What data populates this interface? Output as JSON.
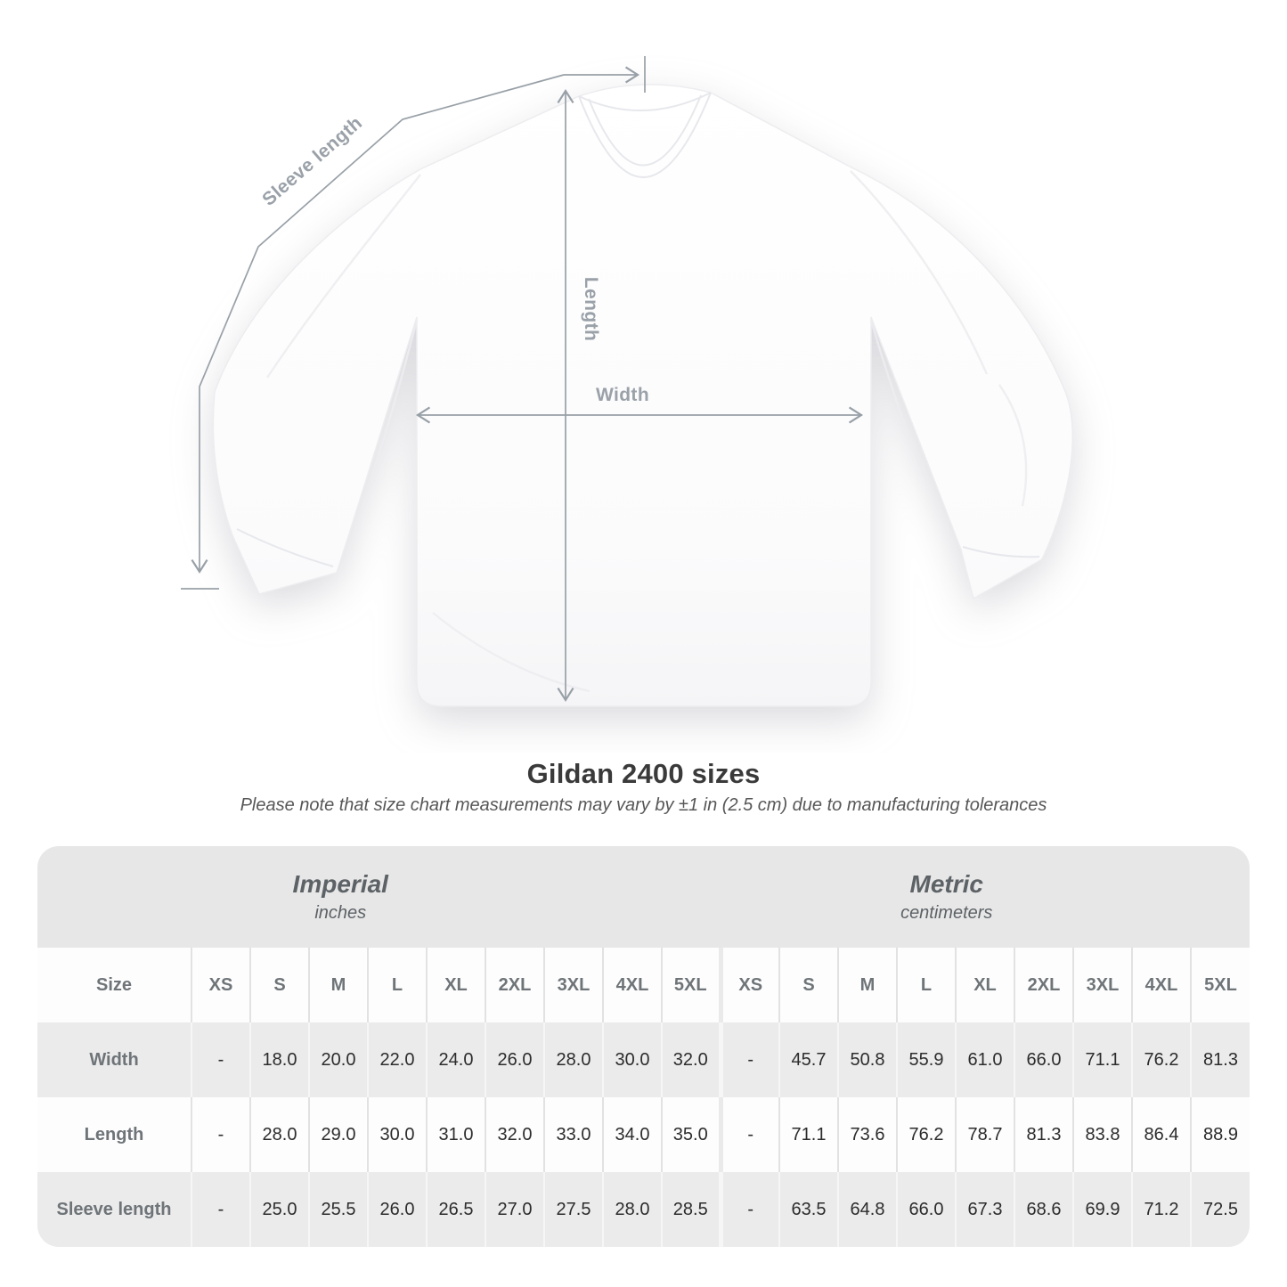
{
  "title": "Gildan 2400 sizes",
  "subtitle": "Please note that size chart measurements may vary by ±1 in (2.5 cm) due to manufacturing tolerances",
  "diagram": {
    "sleeve_length_label": "Sleeve length",
    "length_label": "Length",
    "width_label": "Width"
  },
  "chart_data": {
    "type": "table",
    "title": "Gildan 2400 sizes",
    "note": "Please note that size chart measurements may vary by ±1 in (2.5 cm) due to manufacturing tolerances",
    "unit_groups": [
      {
        "label": "Imperial",
        "unit": "inches"
      },
      {
        "label": "Metric",
        "unit": "centimeters"
      }
    ],
    "size_header_label": "Size",
    "sizes": [
      "XS",
      "S",
      "M",
      "L",
      "XL",
      "2XL",
      "3XL",
      "4XL",
      "5XL"
    ],
    "rows": [
      {
        "label": "Width",
        "imperial": [
          "-",
          "18.0",
          "20.0",
          "22.0",
          "24.0",
          "26.0",
          "28.0",
          "30.0",
          "32.0"
        ],
        "metric": [
          "-",
          "45.7",
          "50.8",
          "55.9",
          "61.0",
          "66.0",
          "71.1",
          "76.2",
          "81.3"
        ]
      },
      {
        "label": "Length",
        "imperial": [
          "-",
          "28.0",
          "29.0",
          "30.0",
          "31.0",
          "32.0",
          "33.0",
          "34.0",
          "35.0"
        ],
        "metric": [
          "-",
          "71.1",
          "73.6",
          "76.2",
          "78.7",
          "81.3",
          "83.8",
          "86.4",
          "88.9"
        ]
      },
      {
        "label": "Sleeve length",
        "imperial": [
          "-",
          "25.0",
          "25.5",
          "26.0",
          "26.5",
          "27.0",
          "27.5",
          "28.0",
          "28.5"
        ],
        "metric": [
          "-",
          "63.5",
          "64.8",
          "66.0",
          "67.3",
          "68.6",
          "69.9",
          "71.2",
          "72.5"
        ]
      }
    ]
  },
  "colors": {
    "annotation": "#98a0a7",
    "band_bg": "#e7e7e7",
    "row_gray": "#ebebeb",
    "row_white": "#fdfdfd",
    "header_text": "#6e7478",
    "value_text": "#2c2c2c",
    "title_text": "#3a3a3a",
    "subtitle_text": "#575757"
  }
}
